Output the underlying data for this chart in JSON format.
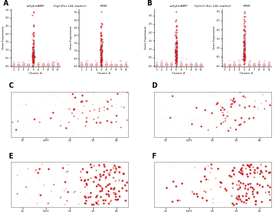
{
  "panel_labels": [
    "A",
    "B",
    "C",
    "D",
    "E",
    "F"
  ],
  "box_titles_A": [
    "scHybridNMF",
    "Ctgf (Exc L6b marker)",
    "HMRF"
  ],
  "box_titles_B": [
    "scHybridNMF",
    "Cp(x)3 (Exc L6b marker)",
    "HMRF"
  ],
  "xlabel_box": "Cluster #",
  "ylabel_box": "Gene Expression",
  "scatter_xlabels": [
    "L1",
    "L2/3",
    "L4",
    "L5",
    "L6"
  ],
  "bg_color": "#ffffff",
  "box_color_fill": "#c8d0e8",
  "box_color_edge": "#9999bb",
  "scatter_dot_high": "#cc1111",
  "scatter_dot_med": "#dd6666",
  "scatter_dot_low": "#eeaaaa",
  "scatter_dot_bg": "#e8e8e8",
  "n_clusters": 10,
  "seed": 42,
  "highlight_cluster_A": 4,
  "highlight_cluster_B": 4
}
